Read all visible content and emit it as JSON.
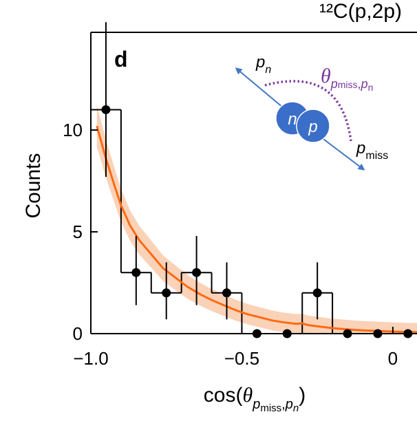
{
  "chart_data": {
    "type": "histogram",
    "title": "¹²C(p,2p)",
    "panel_label": "d",
    "xlabel": {
      "prefix": "cos(",
      "theta": "θ",
      "sub1": "p",
      "sub1sub": "miss",
      "comma": ",",
      "sub2": "p",
      "sub2sub": "n",
      "suffix": ")"
    },
    "ylabel": "Counts",
    "xlim": [
      -1.0,
      0.08
    ],
    "ylim": [
      0,
      14.8
    ],
    "x_ticks": [
      -1.0,
      -0.5,
      0
    ],
    "x_tick_labels": [
      "−1.0",
      "−0.5",
      "0"
    ],
    "y_ticks": [
      0,
      5,
      10
    ],
    "y_tick_labels": [
      "0",
      "5",
      "10"
    ],
    "histogram": {
      "bin_edges": [
        -1.0,
        -0.9,
        -0.8,
        -0.7,
        -0.6,
        -0.5,
        -0.4,
        -0.3,
        -0.2,
        -0.1,
        0.0,
        0.1
      ],
      "counts": [
        11,
        3,
        2,
        3,
        2,
        0,
        0,
        2,
        0,
        0,
        0
      ]
    },
    "points": [
      {
        "x": -0.95,
        "y": 11,
        "err_low": 3.3,
        "err_high": 4.3
      },
      {
        "x": -0.85,
        "y": 3,
        "err_low": 1.6,
        "err_high": 1.8
      },
      {
        "x": -0.75,
        "y": 2,
        "err_low": 1.3,
        "err_high": 1.5
      },
      {
        "x": -0.65,
        "y": 3,
        "err_low": 1.6,
        "err_high": 1.8
      },
      {
        "x": -0.55,
        "y": 2,
        "err_low": 1.3,
        "err_high": 1.5
      },
      {
        "x": -0.45,
        "y": 0,
        "err_low": 0,
        "err_high": 0
      },
      {
        "x": -0.35,
        "y": 0,
        "err_low": 0,
        "err_high": 0
      },
      {
        "x": -0.25,
        "y": 2,
        "err_low": 1.3,
        "err_high": 1.5
      },
      {
        "x": -0.15,
        "y": 0,
        "err_low": 0,
        "err_high": 0
      },
      {
        "x": -0.05,
        "y": 0,
        "err_low": 0,
        "err_high": 0
      },
      {
        "x": 0.05,
        "y": 0,
        "err_low": 0,
        "err_high": 0
      }
    ],
    "model_curve": {
      "x": [
        -0.98,
        -0.95,
        -0.92,
        -0.9,
        -0.87,
        -0.84,
        -0.8,
        -0.76,
        -0.72,
        -0.68,
        -0.64,
        -0.6,
        -0.56,
        -0.52,
        -0.48,
        -0.44,
        -0.4,
        -0.36,
        -0.32,
        -0.3,
        -0.28,
        -0.24,
        -0.2,
        -0.16,
        -0.12,
        -0.08,
        -0.04,
        0.0,
        0.04,
        0.08
      ],
      "y": [
        10.2,
        8.6,
        7.2,
        6.3,
        5.3,
        4.6,
        3.9,
        3.2,
        2.75,
        2.3,
        1.95,
        1.65,
        1.4,
        1.15,
        0.95,
        0.8,
        0.65,
        0.55,
        0.48,
        0.5,
        0.42,
        0.34,
        0.27,
        0.22,
        0.18,
        0.15,
        0.12,
        0.1,
        0.08,
        0.07
      ],
      "band": 0.45,
      "line_color": "#ff6a10",
      "band_color": "#f8c3a0"
    },
    "inset": {
      "label_pn": {
        "main": "p",
        "sub": "n"
      },
      "label_pmiss": {
        "main": "p",
        "sub": "miss"
      },
      "label_theta": {
        "main": "θ",
        "sub1": "p",
        "sub1sub": "miss",
        "comma": ",",
        "sub2": "p",
        "sub2sub": "n"
      },
      "nucleon_n": "n",
      "nucleon_p": "p",
      "arrow_color": "#3f78c5",
      "nucleon_color": "#3b6ec8",
      "arc_color": "#7a3aa0"
    }
  }
}
